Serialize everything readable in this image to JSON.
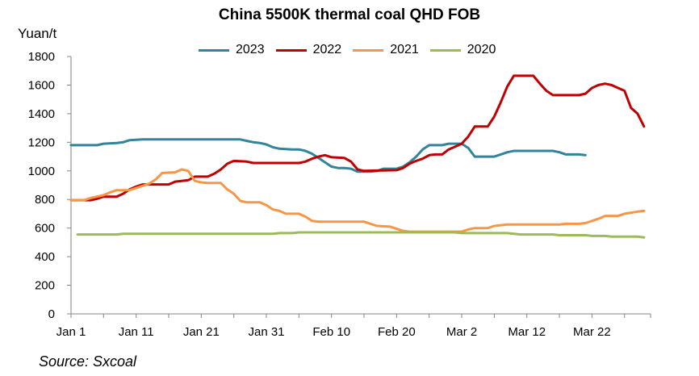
{
  "chart_data": {
    "type": "line",
    "title": "China 5500K thermal coal QHD FOB",
    "ylabel": "Yuan/t",
    "xlabel": "",
    "ylim": [
      0,
      1800
    ],
    "yticks": [
      0,
      200,
      400,
      600,
      800,
      1000,
      1200,
      1400,
      1600,
      1800
    ],
    "x_axis": {
      "start_day": 1,
      "end_day": 90,
      "tick_labels": [
        "Jan 1",
        "Jan 11",
        "Jan 21",
        "Jan 31",
        "Feb 10",
        "Feb 20",
        "Mar 2",
        "Mar 12",
        "Mar 22"
      ],
      "tick_days": [
        1,
        11,
        21,
        31,
        41,
        51,
        61,
        71,
        81
      ]
    },
    "legend_position": "top",
    "grid": false,
    "series": [
      {
        "name": "2023",
        "color": "#31849B",
        "points": [
          [
            1,
            1180
          ],
          [
            2,
            1180
          ],
          [
            5,
            1180
          ],
          [
            6,
            1190
          ],
          [
            8,
            1195
          ],
          [
            9,
            1200
          ],
          [
            10,
            1215
          ],
          [
            12,
            1220
          ],
          [
            20,
            1220
          ],
          [
            27,
            1220
          ],
          [
            28,
            1210
          ],
          [
            29,
            1200
          ],
          [
            30,
            1195
          ],
          [
            31,
            1185
          ],
          [
            32,
            1165
          ],
          [
            33,
            1155
          ],
          [
            35,
            1150
          ],
          [
            36,
            1150
          ],
          [
            37,
            1140
          ],
          [
            38,
            1120
          ],
          [
            39,
            1090
          ],
          [
            40,
            1060
          ],
          [
            41,
            1030
          ],
          [
            42,
            1020
          ],
          [
            43,
            1020
          ],
          [
            44,
            1015
          ],
          [
            45,
            995
          ],
          [
            47,
            995
          ],
          [
            48,
            1000
          ],
          [
            49,
            1015
          ],
          [
            51,
            1015
          ],
          [
            52,
            1030
          ],
          [
            53,
            1060
          ],
          [
            54,
            1100
          ],
          [
            55,
            1150
          ],
          [
            56,
            1180
          ],
          [
            58,
            1180
          ],
          [
            59,
            1190
          ],
          [
            61,
            1190
          ],
          [
            62,
            1160
          ],
          [
            63,
            1100
          ],
          [
            66,
            1100
          ],
          [
            67,
            1115
          ],
          [
            68,
            1130
          ],
          [
            69,
            1140
          ],
          [
            75,
            1140
          ],
          [
            76,
            1130
          ],
          [
            77,
            1115
          ],
          [
            79,
            1115
          ],
          [
            80,
            1110
          ]
        ]
      },
      {
        "name": "2022",
        "color": "#C00000",
        "points": [
          [
            1,
            795
          ],
          [
            4,
            795
          ],
          [
            5,
            805
          ],
          [
            6,
            820
          ],
          [
            8,
            820
          ],
          [
            9,
            840
          ],
          [
            10,
            870
          ],
          [
            11,
            890
          ],
          [
            12,
            905
          ],
          [
            16,
            905
          ],
          [
            17,
            925
          ],
          [
            18,
            930
          ],
          [
            19,
            935
          ],
          [
            20,
            960
          ],
          [
            22,
            960
          ],
          [
            23,
            980
          ],
          [
            24,
            1010
          ],
          [
            25,
            1050
          ],
          [
            26,
            1070
          ],
          [
            28,
            1065
          ],
          [
            29,
            1055
          ],
          [
            36,
            1055
          ],
          [
            37,
            1065
          ],
          [
            38,
            1085
          ],
          [
            39,
            1100
          ],
          [
            40,
            1110
          ],
          [
            41,
            1095
          ],
          [
            43,
            1090
          ],
          [
            44,
            1065
          ],
          [
            45,
            1010
          ],
          [
            46,
            1000
          ],
          [
            51,
            1005
          ],
          [
            52,
            1020
          ],
          [
            53,
            1050
          ],
          [
            54,
            1070
          ],
          [
            55,
            1085
          ],
          [
            56,
            1110
          ],
          [
            57,
            1115
          ],
          [
            58,
            1115
          ],
          [
            59,
            1150
          ],
          [
            60,
            1170
          ],
          [
            61,
            1190
          ],
          [
            62,
            1240
          ],
          [
            63,
            1310
          ],
          [
            65,
            1310
          ],
          [
            66,
            1380
          ],
          [
            67,
            1480
          ],
          [
            68,
            1590
          ],
          [
            69,
            1665
          ],
          [
            72,
            1665
          ],
          [
            73,
            1610
          ],
          [
            74,
            1560
          ],
          [
            75,
            1530
          ],
          [
            79,
            1530
          ],
          [
            80,
            1540
          ],
          [
            81,
            1580
          ],
          [
            82,
            1600
          ],
          [
            83,
            1610
          ],
          [
            84,
            1600
          ],
          [
            85,
            1580
          ],
          [
            86,
            1560
          ],
          [
            87,
            1440
          ],
          [
            88,
            1400
          ],
          [
            89,
            1310
          ]
        ]
      },
      {
        "name": "2021",
        "color": "#F79646",
        "points": [
          [
            1,
            795
          ],
          [
            3,
            795
          ],
          [
            4,
            810
          ],
          [
            6,
            830
          ],
          [
            7,
            850
          ],
          [
            8,
            865
          ],
          [
            9,
            865
          ],
          [
            10,
            865
          ],
          [
            11,
            880
          ],
          [
            13,
            910
          ],
          [
            14,
            940
          ],
          [
            15,
            985
          ],
          [
            17,
            990
          ],
          [
            18,
            1010
          ],
          [
            19,
            1000
          ],
          [
            20,
            930
          ],
          [
            21,
            920
          ],
          [
            22,
            915
          ],
          [
            24,
            915
          ],
          [
            25,
            870
          ],
          [
            26,
            840
          ],
          [
            27,
            790
          ],
          [
            28,
            780
          ],
          [
            30,
            780
          ],
          [
            31,
            760
          ],
          [
            32,
            730
          ],
          [
            33,
            720
          ],
          [
            34,
            700
          ],
          [
            36,
            700
          ],
          [
            37,
            680
          ],
          [
            38,
            650
          ],
          [
            39,
            645
          ],
          [
            46,
            645
          ],
          [
            47,
            630
          ],
          [
            48,
            615
          ],
          [
            50,
            610
          ],
          [
            51,
            595
          ],
          [
            52,
            580
          ],
          [
            53,
            575
          ],
          [
            61,
            575
          ],
          [
            62,
            590
          ],
          [
            63,
            600
          ],
          [
            65,
            600
          ],
          [
            66,
            615
          ],
          [
            67,
            620
          ],
          [
            68,
            625
          ],
          [
            76,
            625
          ],
          [
            77,
            630
          ],
          [
            79,
            630
          ],
          [
            80,
            635
          ],
          [
            81,
            650
          ],
          [
            82,
            665
          ],
          [
            83,
            685
          ],
          [
            85,
            685
          ],
          [
            86,
            700
          ],
          [
            88,
            715
          ],
          [
            89,
            720
          ]
        ]
      },
      {
        "name": "2020",
        "color": "#9BBB59",
        "points": [
          [
            2,
            555
          ],
          [
            8,
            555
          ],
          [
            9,
            560
          ],
          [
            32,
            560
          ],
          [
            33,
            565
          ],
          [
            35,
            565
          ],
          [
            36,
            570
          ],
          [
            60,
            570
          ],
          [
            61,
            565
          ],
          [
            68,
            565
          ],
          [
            69,
            560
          ],
          [
            70,
            555
          ],
          [
            75,
            555
          ],
          [
            76,
            550
          ],
          [
            80,
            550
          ],
          [
            81,
            545
          ],
          [
            83,
            545
          ],
          [
            84,
            540
          ],
          [
            87,
            540
          ],
          [
            88,
            540
          ],
          [
            89,
            535
          ]
        ]
      }
    ],
    "source": "Source: Sxcoal"
  }
}
